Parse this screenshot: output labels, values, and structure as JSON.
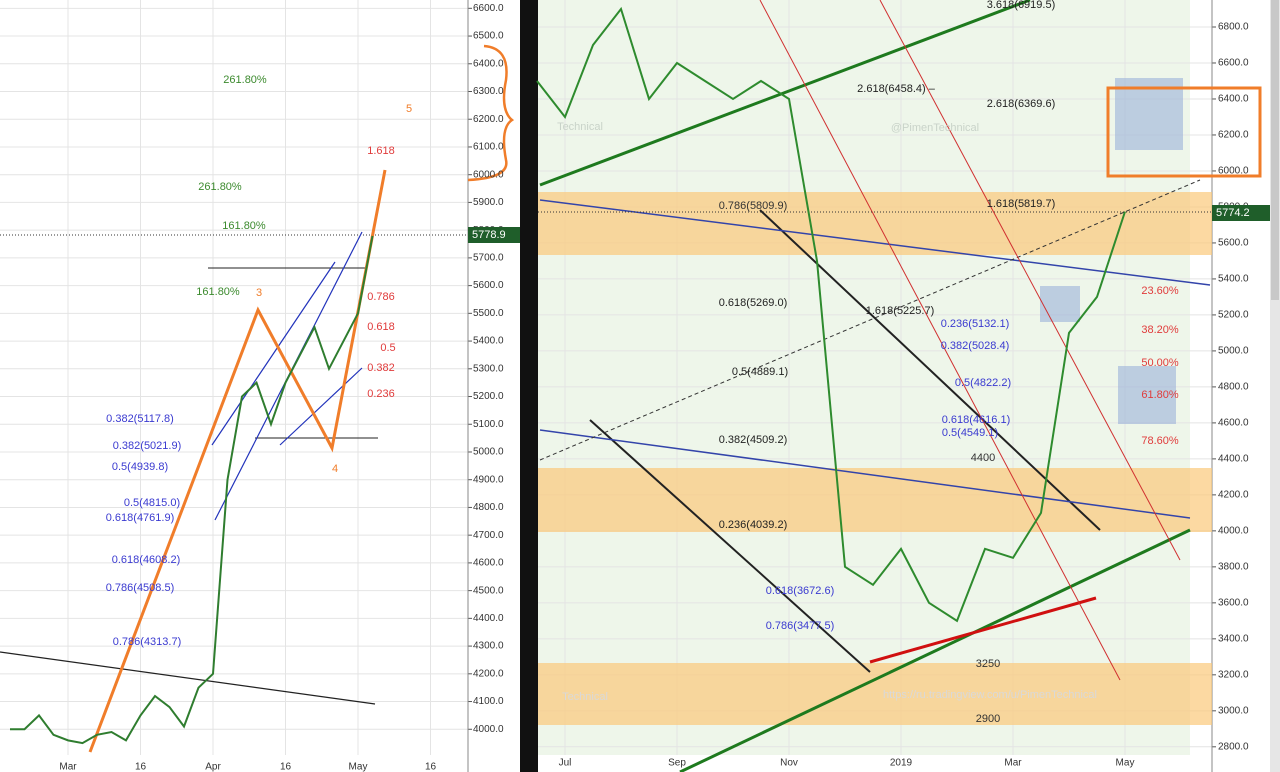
{
  "chart_data": [
    {
      "type": "line",
      "categories": [
        null,
        null,
        null,
        null,
        "Mar",
        null,
        null,
        null,
        null,
        "16",
        null,
        null,
        null,
        null,
        "Apr",
        null,
        null,
        null,
        null,
        "16",
        null,
        null,
        null,
        null,
        "May",
        null,
        null,
        null,
        null,
        "16",
        null
      ],
      "series": [
        {
          "color": "#2f7d2f",
          "values": [
            4000,
            4000,
            4050,
            3980,
            3960,
            3950,
            3980,
            3990,
            3960,
            4050,
            4120,
            4080,
            4010,
            4150,
            4200,
            4900,
            5200,
            5250,
            5100,
            5250,
            5350,
            5450,
            5300,
            5400,
            5500,
            5779,
            null,
            null,
            null,
            null,
            null
          ]
        }
      ],
      "ylim": [
        3900,
        6630
      ],
      "yticks": [
        {
          "value": 4000,
          "label": "4000.0"
        },
        {
          "value": 4100,
          "label": "4100.0"
        },
        {
          "value": 4200,
          "label": "4200.0"
        },
        {
          "value": 4300,
          "label": "4300.0"
        },
        {
          "value": 4400,
          "label": "4400.0"
        },
        {
          "value": 4500,
          "label": "4500.0"
        },
        {
          "value": 4600,
          "label": "4600.0"
        },
        {
          "value": 4700,
          "label": "4700.0"
        },
        {
          "value": 4800,
          "label": "4800.0"
        },
        {
          "value": 4900,
          "label": "4900.0"
        },
        {
          "value": 5000,
          "label": "5000.0"
        },
        {
          "value": 5100,
          "label": "5100.0"
        },
        {
          "value": 5200,
          "label": "5200.0"
        },
        {
          "value": 5300,
          "label": "5300.0"
        },
        {
          "value": 5400,
          "label": "5400.0"
        },
        {
          "value": 5500,
          "label": "5500.0"
        },
        {
          "value": 5600,
          "label": "5600.0"
        },
        {
          "value": 5700,
          "label": "5700.0"
        },
        {
          "value": 5800,
          "label": "5800.0"
        },
        {
          "value": 5900,
          "label": "5900.0"
        },
        {
          "value": 6000,
          "label": "6000.0"
        },
        {
          "value": 6100,
          "label": "6100.0"
        },
        {
          "value": 6200,
          "label": "6200.0"
        },
        {
          "value": 6300,
          "label": "6300.0"
        },
        {
          "value": 6400,
          "label": "6400.0"
        },
        {
          "value": 6500,
          "label": "6500.0"
        },
        {
          "value": 6600,
          "label": "6600.0"
        }
      ],
      "grid": true,
      "last_value_label": "5778.9",
      "annotations": [
        "261.80%",
        "261.80%",
        "161.80%",
        "161.80%",
        "1.618",
        "0.786",
        "0.618",
        "0.5",
        "0.382",
        "0.236",
        "0.382(5117.8)",
        "0.382(5021.9)",
        "0.5(4939.8)",
        "0.5(4815.0)",
        "0.618(4761.9)",
        "0.618(4608.2)",
        "0.786(4508.5)",
        "0.786(4313.7)",
        "5",
        "3",
        "4"
      ]
    },
    {
      "type": "line",
      "categories": [
        null,
        "Jul",
        null,
        null,
        null,
        "Sep",
        null,
        null,
        null,
        "Nov",
        null,
        null,
        null,
        "2019",
        null,
        null,
        null,
        "Mar",
        null,
        null,
        null,
        "May",
        null,
        null
      ],
      "series": [
        {
          "color": "#2e8b2e",
          "values": [
            6500,
            6300,
            6700,
            6900,
            6400,
            6600,
            6500,
            6400,
            6500,
            6400,
            5500,
            3800,
            3700,
            3900,
            3600,
            3500,
            3900,
            3850,
            4100,
            5100,
            5300,
            5774,
            null,
            null
          ]
        }
      ],
      "ylim": [
        2660,
        6950
      ],
      "yticks": [
        {
          "value": 2800,
          "label": "2800.0"
        },
        {
          "value": 3000,
          "label": "3000.0"
        },
        {
          "value": 3200,
          "label": "3200.0"
        },
        {
          "value": 3400,
          "label": "3400.0"
        },
        {
          "value": 3600,
          "label": "3600.0"
        },
        {
          "value": 3800,
          "label": "3800.0"
        },
        {
          "value": 4000,
          "label": "4000.0"
        },
        {
          "value": 4200,
          "label": "4200.0"
        },
        {
          "value": 4400,
          "label": "4400.0"
        },
        {
          "value": 4600,
          "label": "4600.0"
        },
        {
          "value": 4800,
          "label": "4800.0"
        },
        {
          "value": 5000,
          "label": "5000.0"
        },
        {
          "value": 5200,
          "label": "5200.0"
        },
        {
          "value": 5400,
          "label": "5400.0"
        },
        {
          "value": 5600,
          "label": "5600.0"
        },
        {
          "value": 5800,
          "label": "5800.0"
        },
        {
          "value": 6000,
          "label": "6000.0"
        },
        {
          "value": 6200,
          "label": "6200.0"
        },
        {
          "value": 6400,
          "label": "6400.0"
        },
        {
          "value": 6600,
          "label": "6600.0"
        },
        {
          "value": 6800,
          "label": "6800.0"
        }
      ],
      "grid": true,
      "last_value_label": "5774.2",
      "annotations": [
        "3.618(6919.5)",
        "2.618(6458.4) –",
        "2.618(6369.6)",
        "0.786(5809.9)",
        "1.618(5819.7)",
        "0.618(5269.0)",
        "1.618(5225.7)",
        "0.236(5132.1)",
        "0.382(5028.4)",
        "0.5(4889.1)",
        "0.5(4822.2)",
        "0.618(4616.1)",
        "0.5(4549.1)",
        "0.382(4509.2)",
        "4400",
        "0.236(4039.2)",
        "0.618(3672.6)",
        "0.786(3477.5)",
        "3250",
        "2900",
        "23.60%",
        "38.20%",
        "50.00%",
        "61.80%",
        "78.60%",
        "@PimenTechnical",
        "Technical",
        "Technical",
        "https://ru.tradingview.com/u/PimenTechnical"
      ]
    }
  ]
}
